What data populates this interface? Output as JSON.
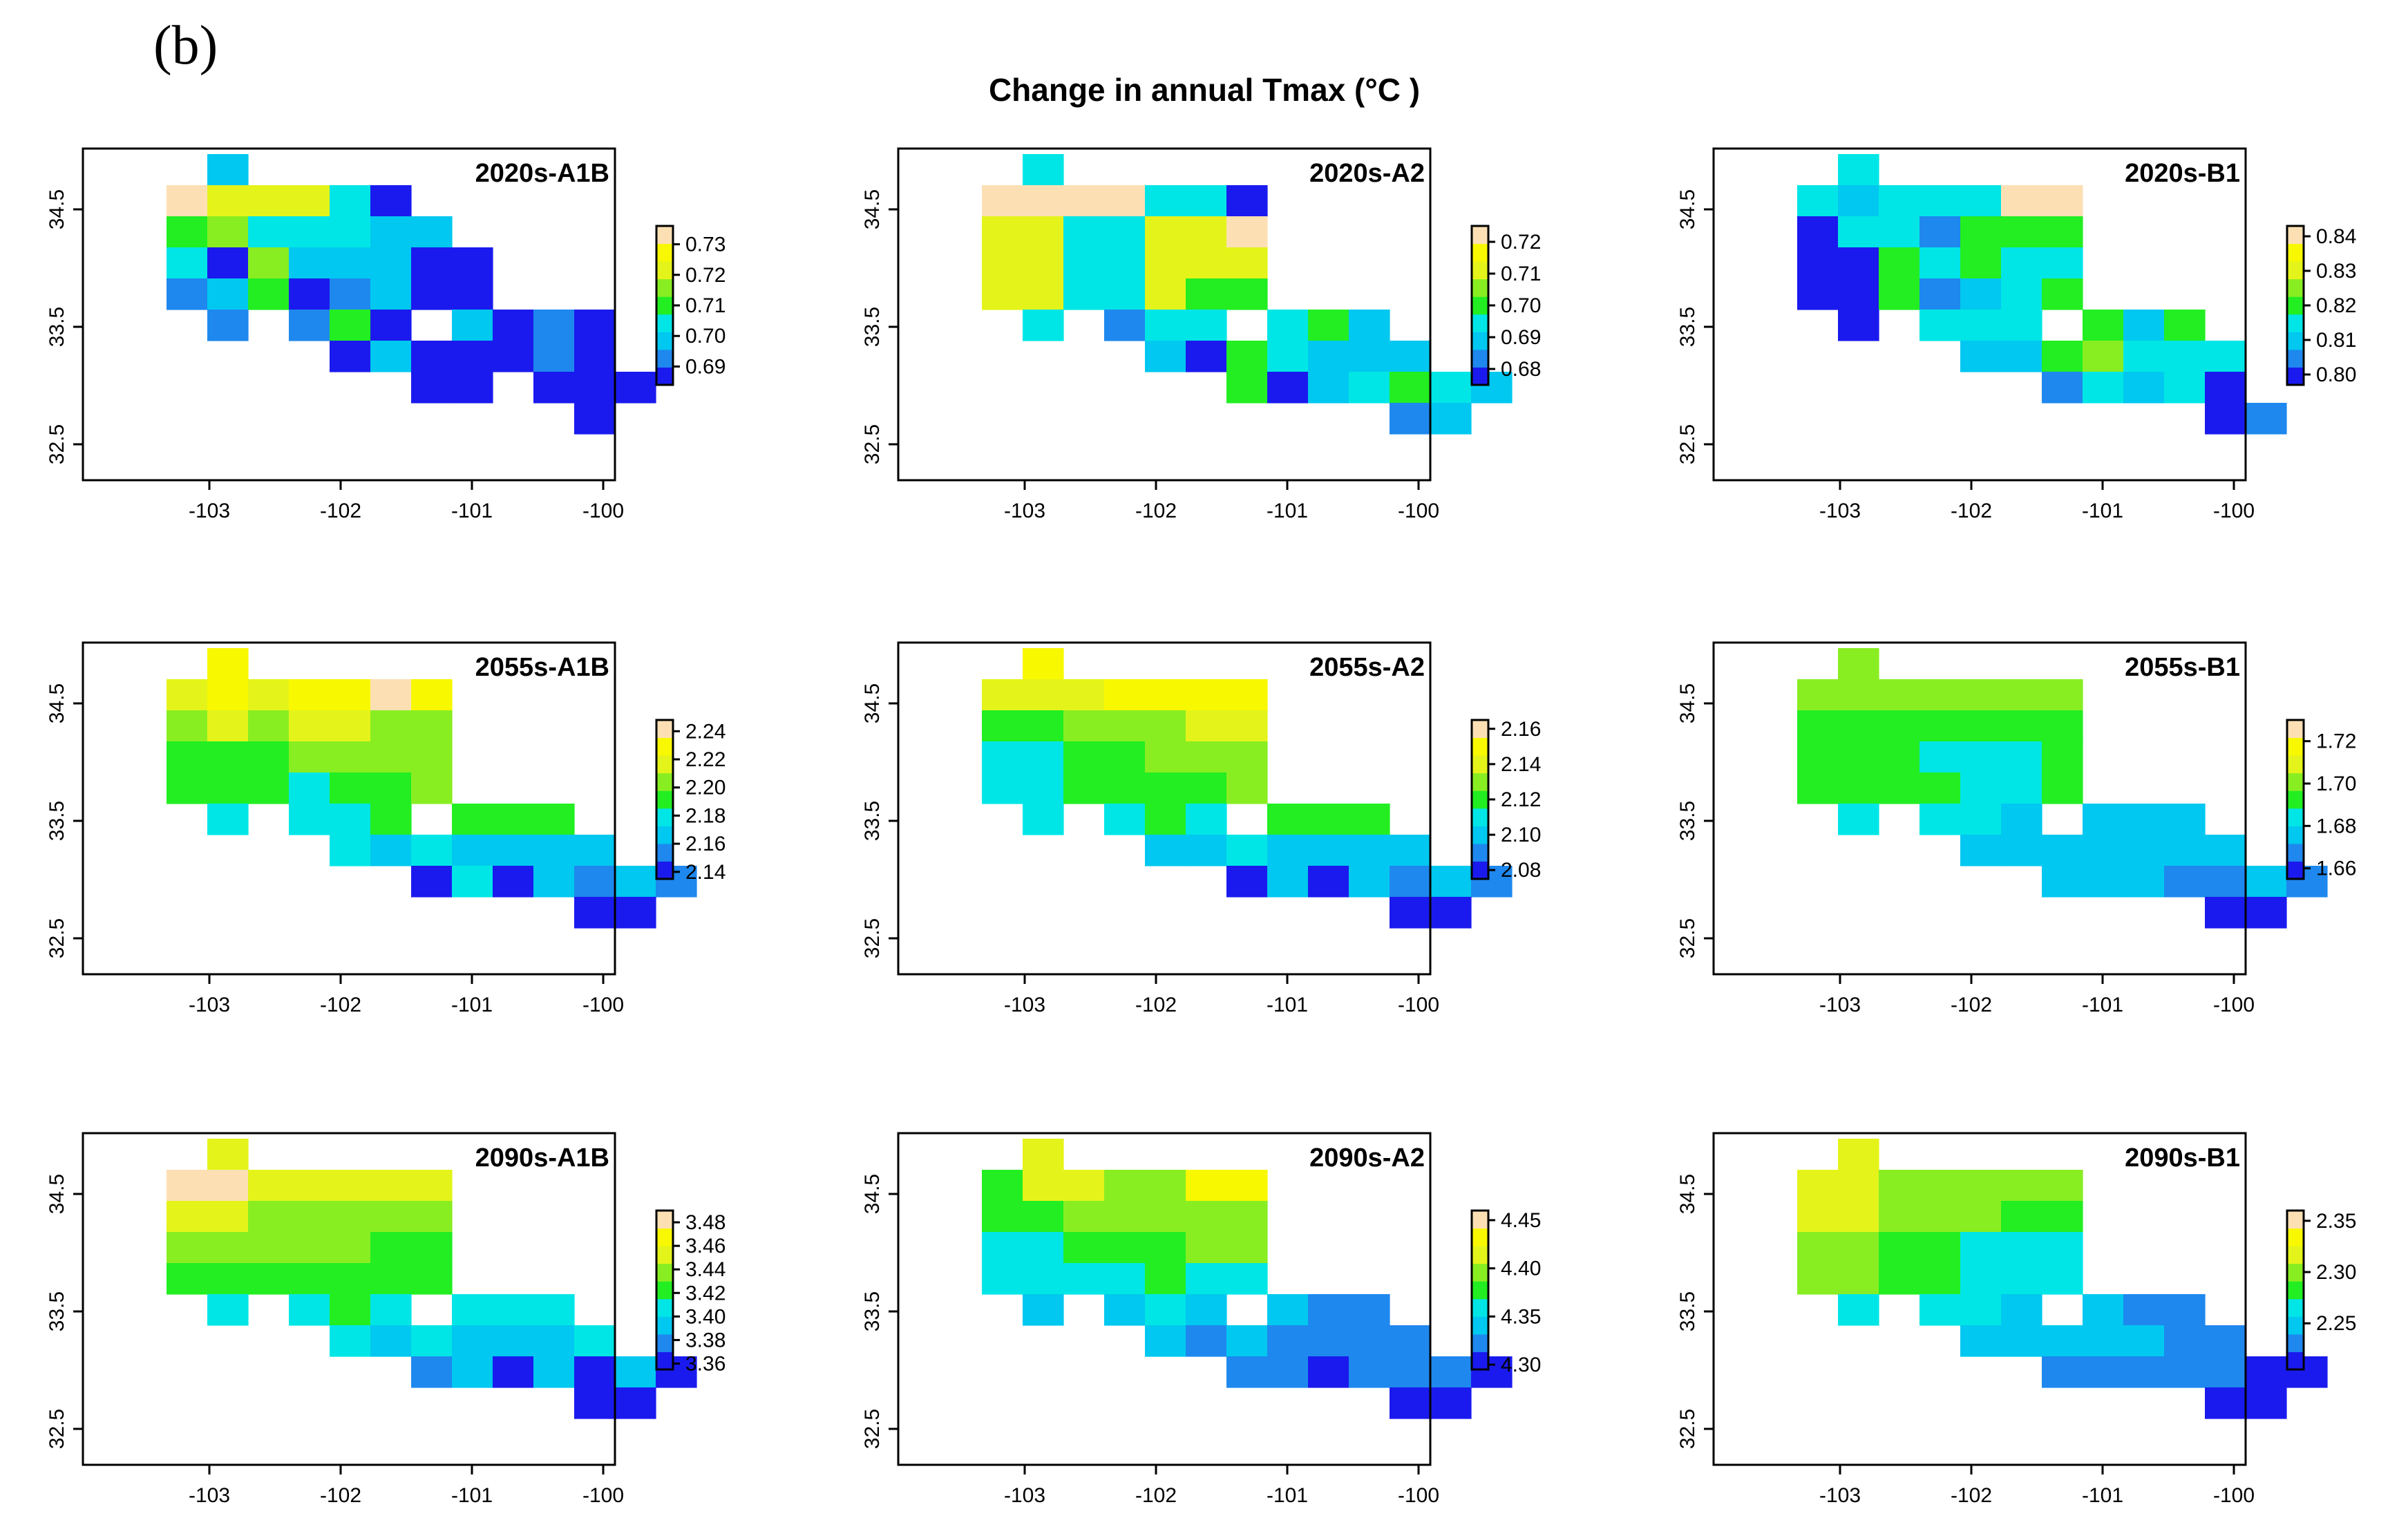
{
  "figure": {
    "panel_label": "(b)",
    "title": "Change in annual Tmax (°C )"
  },
  "chart_data": [
    {
      "type": "heatmap",
      "title": "2020s-A1B",
      "x_ticks": [
        "-103",
        "-102",
        "-101",
        "-100"
      ],
      "y_ticks": [
        "32.5",
        "33.5",
        "34.5"
      ],
      "xlim": [
        -103.9,
        -99.85
      ],
      "ylim": [
        32.3,
        35.15
      ],
      "legend_ticks": [
        "0.73",
        "0.72",
        "0.71",
        "0.70",
        "0.69"
      ],
      "legend_range": [
        0.684,
        0.736
      ],
      "grid": [
        "...2..........",
        "..866630......",
        "..4533322.....",
        "..30522200....",
        "..12401200....",
        "...1.140.2010.",
        "......0200010.",
        "........00.000",
        "............0."
      ]
    },
    {
      "type": "heatmap",
      "title": "2020s-A2",
      "x_ticks": [
        "-103",
        "-102",
        "-101",
        "-100"
      ],
      "y_ticks": [
        "32.5",
        "33.5",
        "34.5"
      ],
      "xlim": [
        -103.9,
        -99.85
      ],
      "ylim": [
        32.3,
        35.15
      ],
      "legend_ticks": [
        "0.72",
        "0.71",
        "0.70",
        "0.69",
        "0.68"
      ],
      "legend_range": [
        0.675,
        0.725
      ],
      "grid": [
        "...3..........",
        "..8888330.....",
        "..6633668.....",
        "..6633666.....",
        "..6633644.....",
        "...3.133.342..",
        "......2043222.",
        "........4023432",
        "............12."
      ]
    },
    {
      "type": "heatmap",
      "title": "2020s-B1",
      "x_ticks": [
        "-103",
        "-102",
        "-101",
        "-100"
      ],
      "y_ticks": [
        "32.5",
        "33.5",
        "34.5"
      ],
      "xlim": [
        -103.9,
        -99.85
      ],
      "ylim": [
        32.3,
        35.15
      ],
      "legend_ticks": [
        "0.84",
        "0.83",
        "0.82",
        "0.81",
        "0.80"
      ],
      "legend_range": [
        0.797,
        0.843
      ],
      "grid": [
        "...3..........",
        "..3233388.....",
        "..0331444.....",
        "..0043433.....",
        "..0041234.....",
        "...0.333.424..",
        "......2245333.",
        "........13230..",
        "............01."
      ]
    },
    {
      "type": "heatmap",
      "title": "2055s-A1B",
      "x_ticks": [
        "-103",
        "-102",
        "-101",
        "-100"
      ],
      "y_ticks": [
        "32.5",
        "33.5",
        "34.5"
      ],
      "xlim": [
        -103.9,
        -99.85
      ],
      "ylim": [
        32.3,
        35.15
      ],
      "legend_ticks": [
        "2.24",
        "2.22",
        "2.20",
        "2.18",
        "2.16",
        "2.14"
      ],
      "legend_range": [
        2.135,
        2.248
      ],
      "grid": [
        "...7..........",
        "..6767787.....",
        "..5656655.....",
        "..4445555.....",
        "..4443445.....",
        "...3.334.444..",
        "......3232222.",
        "........0302121",
        "............00."
      ]
    },
    {
      "type": "heatmap",
      "title": "2055s-A2",
      "x_ticks": [
        "-103",
        "-102",
        "-101",
        "-100"
      ],
      "y_ticks": [
        "32.5",
        "33.5",
        "34.5"
      ],
      "xlim": [
        -103.9,
        -99.85
      ],
      "ylim": [
        32.3,
        35.15
      ],
      "legend_ticks": [
        "2.16",
        "2.14",
        "2.12",
        "2.10",
        "2.08"
      ],
      "legend_range": [
        2.075,
        2.165
      ],
      "grid": [
        "...7..........",
        "..6667777.....",
        "..4455566.....",
        "..3344555.....",
        "..3344445.....",
        "...3.343.444..",
        "......2232222.",
        "........0202121",
        "............00."
      ]
    },
    {
      "type": "heatmap",
      "title": "2055s-B1",
      "x_ticks": [
        "-103",
        "-102",
        "-101",
        "-100"
      ],
      "y_ticks": [
        "32.5",
        "33.5",
        "34.5"
      ],
      "xlim": [
        -103.9,
        -99.85
      ],
      "ylim": [
        32.3,
        35.15
      ],
      "legend_ticks": [
        "1.72",
        "1.70",
        "1.68",
        "1.66"
      ],
      "legend_range": [
        1.655,
        1.73
      ],
      "grid": [
        "...5..........",
        "..5555555.....",
        "..4444444.....",
        "..4443334.....",
        "..4444334.....",
        "...3.332.222..",
        "......2222222.",
        "........2221121",
        "............00."
      ]
    },
    {
      "type": "heatmap",
      "title": "2090s-A1B",
      "x_ticks": [
        "-103",
        "-102",
        "-101",
        "-100"
      ],
      "y_ticks": [
        "32.5",
        "33.5",
        "34.5"
      ],
      "xlim": [
        -103.9,
        -99.85
      ],
      "ylim": [
        32.3,
        35.15
      ],
      "legend_ticks": [
        "3.48",
        "3.46",
        "3.44",
        "3.42",
        "3.40",
        "3.38",
        "3.36"
      ],
      "legend_range": [
        3.355,
        3.49
      ],
      "grid": [
        "...6..........",
        "..8866666.....",
        "..6655555.....",
        "..5555544.....",
        "..4444444.....",
        "...3.343.333..",
        "......3232223.",
        "........1202020",
        "............00."
      ]
    },
    {
      "type": "heatmap",
      "title": "2090s-A2",
      "x_ticks": [
        "-103",
        "-102",
        "-101",
        "-100"
      ],
      "y_ticks": [
        "32.5",
        "33.5",
        "34.5"
      ],
      "xlim": [
        -103.9,
        -99.85
      ],
      "ylim": [
        32.3,
        35.15
      ],
      "legend_ticks": [
        "4.45",
        "4.40",
        "4.35",
        "4.30"
      ],
      "legend_range": [
        4.295,
        4.46
      ],
      "grid": [
        "...6..........",
        "..4665577.....",
        "..4455555.....",
        "..3344455.....",
        "..3333433.....",
        "...2.232.211..",
        "......2121111.",
        "........1101110",
        "............00."
      ]
    },
    {
      "type": "heatmap",
      "title": "2090s-B1",
      "x_ticks": [
        "-103",
        "-102",
        "-101",
        "-100"
      ],
      "y_ticks": [
        "32.5",
        "33.5",
        "34.5"
      ],
      "xlim": [
        -103.9,
        -99.85
      ],
      "ylim": [
        32.3,
        35.15
      ],
      "legend_ticks": [
        "2.35",
        "2.30",
        "2.25"
      ],
      "legend_range": [
        2.205,
        2.36
      ],
      "grid": [
        "...6..........",
        "..6655555.....",
        "..6655544.....",
        "..5544333.....",
        "..5544333.....",
        "...3.332.211..",
        "......2222211.",
        "........1111100",
        "............00."
      ]
    }
  ]
}
